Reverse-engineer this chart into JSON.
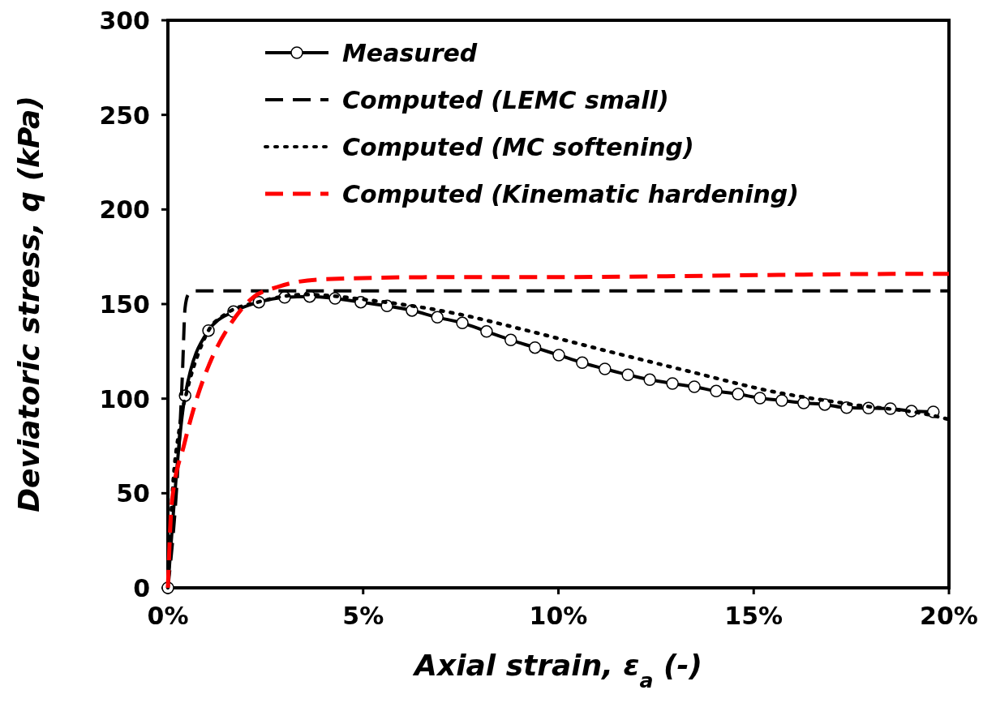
{
  "chart_data": {
    "type": "line",
    "xlabel": "Axial strain, ε$_{a}$ (-)",
    "ylabel": "Deviatoric stress, q (kPa)",
    "xlim": [
      0,
      20
    ],
    "ylim": [
      0,
      300
    ],
    "xticks": [
      {
        "value": 0,
        "label": "0%"
      },
      {
        "value": 5,
        "label": "5%"
      },
      {
        "value": 10,
        "label": "10%"
      },
      {
        "value": 15,
        "label": "15%"
      },
      {
        "value": 20,
        "label": "20%"
      }
    ],
    "yticks": [
      0,
      50,
      100,
      150,
      200,
      250,
      300
    ],
    "grid": false,
    "legend": "top",
    "series": [
      {
        "name": "Measured",
        "color": "#000000",
        "marker": "circle",
        "line_style": "solid",
        "x": [
          0,
          0.44,
          1.04,
          1.68,
          2.33,
          2.99,
          3.63,
          4.28,
          4.94,
          5.61,
          6.25,
          6.9,
          7.54,
          8.16,
          8.78,
          9.4,
          10.01,
          10.61,
          11.19,
          11.78,
          12.34,
          12.92,
          13.48,
          14.04,
          14.6,
          15.16,
          15.72,
          16.28,
          16.82,
          17.38,
          17.94,
          18.5,
          19.04,
          19.6
        ],
        "values": [
          0,
          101.6,
          136,
          146,
          151,
          153.5,
          154,
          153,
          151,
          149,
          146.6,
          143,
          140,
          135.5,
          131,
          127,
          123,
          119,
          115.7,
          112.6,
          110,
          108,
          106.3,
          104,
          102.4,
          100.3,
          99,
          97.7,
          96.9,
          95.2,
          95,
          94.7,
          93.4,
          93
        ]
      },
      {
        "name": "Computed (LEMC small)",
        "color": "#000000",
        "marker": "none",
        "line_style": "dashed",
        "x": [
          0,
          0.27,
          0.37,
          0.44,
          0.52,
          0.65,
          20
        ],
        "values": [
          0,
          69,
          112,
          148,
          155,
          157,
          157
        ]
      },
      {
        "name": "Computed (MC softening)",
        "color": "#000000",
        "marker": "none",
        "line_style": "dotted",
        "x": [
          0,
          0.1,
          0.3,
          0.5,
          0.8,
          1.04,
          1.5,
          2.3,
          3.5,
          5.3,
          7.37,
          9.2,
          11.28,
          13.35,
          15.43,
          17.5,
          19.6,
          20
        ],
        "values": [
          0,
          45,
          85,
          105,
          125,
          136,
          145,
          151,
          155,
          151.7,
          145,
          136,
          125,
          114.4,
          104,
          97,
          91,
          89
        ]
      },
      {
        "name": "Computed (Kinematic hardening)",
        "color": "#ff0000",
        "marker": "none",
        "line_style": "dashed",
        "x": [
          0,
          0.1,
          0.42,
          0.75,
          1.14,
          1.56,
          2.18,
          2.8,
          3.9,
          6.67,
          9.2,
          19.6,
          20
        ],
        "values": [
          0,
          45,
          76,
          100.7,
          122,
          138,
          153.5,
          159,
          163,
          164.2,
          164.2,
          166,
          166
        ]
      }
    ]
  }
}
